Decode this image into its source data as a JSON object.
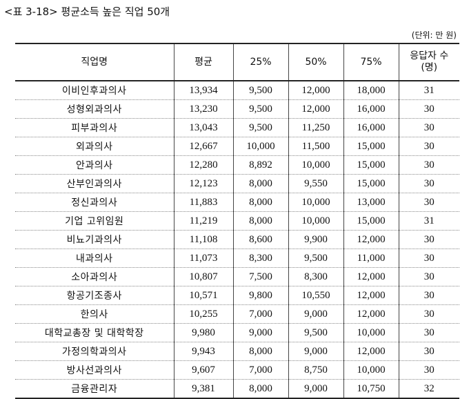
{
  "title": "<표 3-18> 평균소득 높은 직업 50개",
  "unit": "(단위: 만 원)",
  "headers": [
    "직업명",
    "평균",
    "25%",
    "50%",
    "75%",
    "응답자 수 (명)"
  ],
  "rows": [
    [
      "이비인후과의사",
      "13,934",
      "9,500",
      "12,000",
      "18,000",
      "31"
    ],
    [
      "성형외과의사",
      "13,230",
      "9,500",
      "12,000",
      "16,000",
      "30"
    ],
    [
      "피부과의사",
      "13,043",
      "9,500",
      "11,250",
      "16,000",
      "30"
    ],
    [
      "외과의사",
      "12,667",
      "10,000",
      "11,500",
      "15,000",
      "30"
    ],
    [
      "안과의사",
      "12,280",
      "8,892",
      "10,000",
      "15,000",
      "30"
    ],
    [
      "산부인과의사",
      "12,123",
      "8,000",
      "9,550",
      "15,000",
      "30"
    ],
    [
      "정신과의사",
      "11,883",
      "8,000",
      "10,000",
      "13,000",
      "30"
    ],
    [
      "기업 고위임원",
      "11,219",
      "8,000",
      "10,000",
      "15,000",
      "31"
    ],
    [
      "비뇨기과의사",
      "11,108",
      "8,600",
      "9,900",
      "12,000",
      "30"
    ],
    [
      "내과의사",
      "11,073",
      "8,300",
      "9,500",
      "11,000",
      "30"
    ],
    [
      "소아과의사",
      "10,807",
      "7,500",
      "8,300",
      "12,000",
      "30"
    ],
    [
      "항공기조종사",
      "10,571",
      "9,800",
      "10,550",
      "12,000",
      "30"
    ],
    [
      "한의사",
      "10,255",
      "7,000",
      "9,000",
      "12,000",
      "30"
    ],
    [
      "대학교총장 및 대학학장",
      "9,980",
      "9,000",
      "9,500",
      "10,000",
      "30"
    ],
    [
      "가정의학과의사",
      "9,943",
      "8,000",
      "9,000",
      "12,000",
      "30"
    ],
    [
      "방사선과의사",
      "9,607",
      "7,000",
      "8,750",
      "10,000",
      "30"
    ],
    [
      "금융관리자",
      "9,381",
      "8,000",
      "9,000",
      "10,750",
      "32"
    ]
  ]
}
